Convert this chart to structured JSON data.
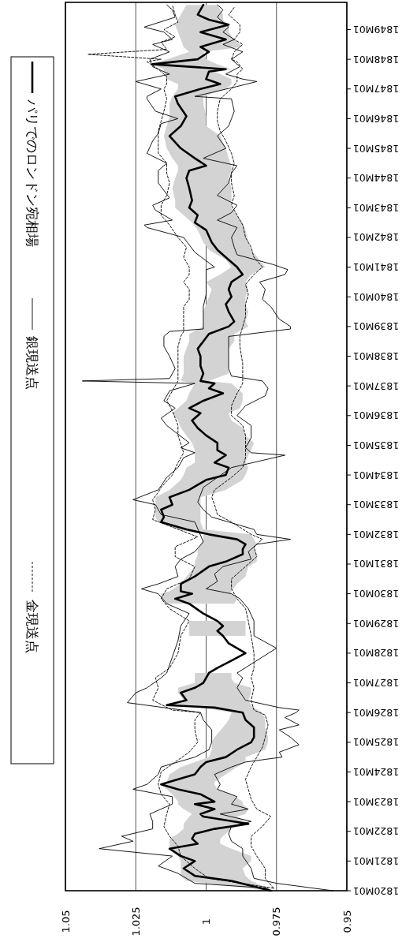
{
  "chart_data": {
    "type": "line",
    "orientation": "horizontal",
    "ylim": [
      "1820-01",
      "1849-12"
    ],
    "yticks": [
      {
        "value": "1820-01",
        "label": "1820M01"
      },
      {
        "value": "1821-01",
        "label": "1821M01"
      },
      {
        "value": "1822-01",
        "label": "1822M01"
      },
      {
        "value": "1823-01",
        "label": "1823M01"
      },
      {
        "value": "1824-01",
        "label": "1824M01"
      },
      {
        "value": "1825-01",
        "label": "1825M01"
      },
      {
        "value": "1826-01",
        "label": "1826M01"
      },
      {
        "value": "1827-01",
        "label": "1827M01"
      },
      {
        "value": "1828-01",
        "label": "1828M01"
      },
      {
        "value": "1829-01",
        "label": "1829M01"
      },
      {
        "value": "1830-01",
        "label": "1830M01"
      },
      {
        "value": "1831-01",
        "label": "1831M01"
      },
      {
        "value": "1832-01",
        "label": "1832M01"
      },
      {
        "value": "1833-01",
        "label": "1833M01"
      },
      {
        "value": "1834-01",
        "label": "1834M01"
      },
      {
        "value": "1835-01",
        "label": "1835M01"
      },
      {
        "value": "1836-01",
        "label": "1836M01"
      },
      {
        "value": "1837-01",
        "label": "1837M01"
      },
      {
        "value": "1838-01",
        "label": "1838M01"
      },
      {
        "value": "1839-01",
        "label": "1839M01"
      },
      {
        "value": "1840-01",
        "label": "1840M01"
      },
      {
        "value": "1841-01",
        "label": "1841M01"
      },
      {
        "value": "1842-01",
        "label": "1842M01"
      },
      {
        "value": "1843-01",
        "label": "1843M01"
      },
      {
        "value": "1844-01",
        "label": "1844M01"
      },
      {
        "value": "1845-01",
        "label": "1845M01"
      },
      {
        "value": "1846-01",
        "label": "1846M01"
      },
      {
        "value": "1847-01",
        "label": "1847M01"
      },
      {
        "value": "1848-01",
        "label": "1848M01"
      },
      {
        "value": "1849-01",
        "label": "1849M01"
      }
    ],
    "xlim": [
      1.05,
      0.95
    ],
    "xticks": [
      1.05,
      1.025,
      1,
      0.975,
      0.95
    ],
    "grid": "x",
    "legend": "left",
    "series": [
      {
        "name": "パリでのロンドン宛相場",
        "color": "#000000",
        "line_style": "solid",
        "x": [
          "1820-01",
          "1820-05",
          "1820-07",
          "1820-10",
          "1821-01",
          "1821-03",
          "1821-06",
          "1821-08",
          "1821-10",
          "1821-12",
          "1822-02",
          "1822-04",
          "1822-07",
          "1822-08",
          "1822-10",
          "1822-12",
          "1823-01",
          "1823-04",
          "1823-06",
          "1823-08",
          "1823-09",
          "1823-12",
          "1824-03",
          "1824-05",
          "1824-07",
          "1824-10",
          "1825-01",
          "1825-03",
          "1825-07",
          "1825-10",
          "1826-01",
          "1826-03",
          "1826-04",
          "1826-06",
          "1826-09",
          "1826-11",
          "1827-01",
          "1827-03",
          "1827-05",
          "1827-07",
          "1827-10",
          "1828-01",
          "1828-03",
          "1828-05",
          "1828-08",
          "1828-10",
          "1828-12",
          "1829-02",
          "1829-05",
          "1829-09",
          "1829-11",
          "1830-01",
          "1830-02",
          "1830-05",
          "1830-08",
          "1830-12",
          "1831-02",
          "1831-05",
          "1831-07",
          "1831-09",
          "1831-11",
          "1832-01",
          "1832-03",
          "1832-06",
          "1832-08",
          "1832-11",
          "1833-01",
          "1833-04",
          "1833-07",
          "1833-11",
          "1834-01",
          "1834-04",
          "1834-06",
          "1834-09",
          "1834-11",
          "1835-02",
          "1835-05",
          "1835-08",
          "1835-11",
          "1836-02",
          "1836-04",
          "1836-07",
          "1836-10",
          "1836-12",
          "1837-02",
          "1837-03",
          "1837-06",
          "1837-09",
          "1838-01",
          "1838-04",
          "1838-07",
          "1838-10",
          "1839-01",
          "1839-03",
          "1839-07",
          "1839-10",
          "1840-01",
          "1840-04",
          "1840-07",
          "1840-10",
          "1841-01",
          "1841-04",
          "1841-08",
          "1841-11",
          "1842-04",
          "1842-07",
          "1842-10",
          "1843-01",
          "1843-04",
          "1843-09",
          "1844-01",
          "1844-04",
          "1844-06",
          "1844-09",
          "1845-01",
          "1845-06",
          "1845-10",
          "1846-02",
          "1846-07",
          "1846-10",
          "1847-01",
          "1847-03",
          "1847-05",
          "1847-08",
          "1847-09",
          "1847-11",
          "1848-01",
          "1848-04",
          "1848-06",
          "1848-09",
          "1848-12",
          "1849-03",
          "1849-05",
          "1849-07",
          "1849-11"
        ],
        "values": [
          0.977,
          0.991,
          1.004,
          1.008,
          1.004,
          1.009,
          1.013,
          1.003,
          1.005,
          1.004,
          0.997,
          0.985,
          1.001,
          1.002,
          0.997,
          1.004,
          0.997,
          1.002,
          1.01,
          1.016,
          1.013,
          1.004,
          1.002,
          1.0,
          0.993,
          0.989,
          0.984,
          0.983,
          0.983,
          0.986,
          0.987,
          0.997,
          1.014,
          1.007,
          1.009,
          1.004,
          1.001,
          1.0,
          0.999,
          0.996,
          0.991,
          0.986,
          0.989,
          0.992,
          0.994,
          0.996,
          0.994,
          0.996,
          1.001,
          1.006,
          1.011,
          1.005,
          1.009,
          1.009,
          1.004,
          0.999,
          0.993,
          0.987,
          0.987,
          0.986,
          0.989,
          0.999,
          1.007,
          1.016,
          1.015,
          1.016,
          1.012,
          1.013,
          1.006,
          1.0,
          0.993,
          0.992,
          0.997,
          0.993,
          0.996,
          0.996,
          1.0,
          1.003,
          1.005,
          1.002,
          1.006,
          1.001,
          0.994,
          0.999,
          0.997,
          1.002,
          1.001,
          1.002,
          1.002,
          1.003,
          1.001,
          0.999,
          0.992,
          0.99,
          0.992,
          0.993,
          0.991,
          0.992,
          0.991,
          0.987,
          0.989,
          0.992,
          0.996,
          0.998,
          1.0,
          1.004,
          1.003,
          1.006,
          1.005,
          1.006,
          1.007,
          1.006,
          1.0,
          1.004,
          1.009,
          1.013,
          1.009,
          1.007,
          1.01,
          1.011,
          1.002,
          0.995,
          1.0,
          0.999,
          0.993,
          1.019,
          1.003,
          0.999,
          1.002,
          0.993,
          1.002,
          0.992,
          0.999,
          1.003,
          1.001
        ],
        "upper": [
          0.978,
          1.007,
          1.009,
          1.009,
          1.009,
          1.01,
          1.013,
          1.013,
          1.013,
          1.01,
          1.008,
          1.008,
          1.006,
          1.005,
          1.008,
          1.01,
          1.01,
          1.012,
          1.014,
          1.016,
          1.014,
          1.013,
          1.009,
          1.004,
          0.999,
          0.998,
          0.998,
          0.997,
          0.994,
          0.992,
          0.991,
          1.001,
          1.014,
          1.008,
          1.01,
          1.01,
          1.004,
          1.004,
          1.004,
          null,
          null,
          null,
          null,
          null,
          1.006,
          1.006,
          1.006,
          1.006,
          null,
          1.014,
          1.016,
          1.016,
          1.013,
          1.009,
          1.007,
          1.004,
          1.004,
          1.003,
          1.003,
          1.002,
          1.001,
          1.001,
          1.01,
          1.017,
          1.018,
          1.018,
          1.018,
          1.018,
          1.013,
          1.009,
          1.008,
          1.007,
          1.004,
          1.004,
          1.004,
          1.005,
          1.007,
          1.009,
          1.01,
          1.012,
          1.01,
          1.007,
          1.006,
          1.005,
          1.004,
          1.009,
          1.008,
          1.008,
          1.008,
          1.007,
          1.006,
          1.006,
          1.001,
          1.001,
          1.001,
          1.0,
          0.999,
          0.998,
          1.0,
          0.995,
          0.991,
          0.993,
          0.999,
          1.001,
          1.003,
          1.005,
          1.008,
          1.011,
          1.011,
          1.012,
          1.011,
          1.01,
          1.01,
          1.012,
          1.014,
          1.015,
          1.014,
          1.013,
          1.013,
          1.012,
          1.01,
          1.01,
          1.014,
          1.015,
          1.015,
          1.019,
          1.014,
          1.006,
          1.008,
          1.009,
          1.01,
          1.011,
          1.01,
          1.009,
          1.007
        ],
        "lower": [
          0.976,
          0.984,
          0.986,
          0.987,
          0.984,
          0.984,
          0.991,
          0.995,
          0.995,
          0.993,
          0.991,
          0.985,
          0.989,
          0.986,
          0.985,
          0.987,
          0.987,
          0.991,
          0.996,
          0.997,
          0.997,
          0.993,
          0.989,
          0.986,
          0.986,
          0.979,
          0.978,
          0.978,
          0.979,
          0.979,
          0.98,
          0.983,
          0.984,
          0.985,
          0.984,
          0.984,
          0.99,
          0.991,
          0.991,
          null,
          null,
          null,
          null,
          null,
          0.986,
          0.986,
          0.986,
          0.986,
          null,
          0.99,
          0.989,
          0.991,
          0.991,
          0.989,
          0.986,
          0.985,
          0.982,
          0.982,
          0.983,
          0.982,
          0.983,
          0.984,
          1.001,
          1.002,
          1.002,
          1.002,
          1.002,
          1.002,
          0.993,
          0.987,
          0.986,
          0.985,
          0.986,
          0.985,
          0.984,
          0.983,
          0.986,
          0.987,
          0.991,
          0.992,
          0.988,
          0.987,
          0.987,
          0.989,
          0.991,
          0.999,
          0.992,
          0.992,
          0.992,
          0.992,
          0.99,
          0.99,
          0.985,
          0.986,
          0.985,
          0.986,
          0.986,
          0.985,
          0.986,
          0.984,
          0.979,
          0.981,
          0.984,
          0.985,
          0.986,
          0.987,
          0.989,
          0.991,
          0.991,
          0.991,
          0.992,
          0.991,
          0.991,
          0.992,
          0.993,
          0.995,
          1.0,
          1.0,
          1.001,
          1.001,
          0.993,
          0.991,
          0.991,
          0.997,
          0.991,
          0.996,
          1.0,
          1.001,
          0.987,
          0.99,
          0.992,
          0.992,
          0.994,
          0.994,
          0.996
        ]
      },
      {
        "name": "銀現送点",
        "color": "#000000",
        "line_style": "solid",
        "x": [
          "1820-02",
          "1820-04",
          "1820-08",
          "1820-11",
          "1821-03",
          "1821-06",
          "1821-09",
          "1821-11",
          "1822-02",
          "1822-05",
          "1822-08",
          "1822-12",
          "1823-03",
          "1823-06",
          "1823-08",
          "1823-12",
          "1824-03",
          "1824-05",
          "1824-07",
          "1824-10",
          "1825-01",
          "1825-06",
          "1825-10",
          "1826-01",
          "1826-05",
          "1826-09",
          "1826-11",
          "1827-03",
          "1827-05",
          "1828-06",
          "1828-12",
          "1829-05",
          "1829-09",
          "1830-01",
          "1830-03",
          "1830-05",
          "1830-08",
          "1830-12",
          "1831-03",
          "1831-06",
          "1831-10",
          "1832-06",
          "1832-09",
          "1833-01",
          "1833-03",
          "1833-07",
          "1833-12",
          "1834-04",
          "1834-08",
          "1834-10",
          "1834-12",
          "1835-02",
          "1835-09",
          "1835-12",
          "1836-04",
          "1836-07",
          "1836-11",
          "1837-02",
          "1837-03",
          "1837-04",
          "1837-08",
          "1838-01",
          "1838-05",
          "1838-09",
          "1838-11",
          "1838-12",
          "1839-03",
          "1839-09",
          "1840-02",
          "1840-06",
          "1840-12",
          "1841-01",
          "1841-07",
          "1842-01",
          "1842-05",
          "1842-06",
          "1842-08",
          "1842-12",
          "1843-02",
          "1843-05",
          "1843-11",
          "1844-04",
          "1844-07",
          "1844-11",
          "1845-04",
          "1845-07",
          "1845-11",
          "1846-01",
          "1846-04",
          "1846-09",
          "1846-10",
          "1847-01",
          "1847-04",
          "1847-07",
          "1847-10",
          "1848-01",
          "1848-04",
          "1848-07",
          "1848-09",
          "1848-12",
          "1849-02",
          "1849-06",
          "1849-09",
          "1849-11"
        ],
        "values": [
          0.978,
          1.004,
          1.01,
          1.017,
          1.012,
          1.038,
          1.026,
          1.03,
          1.019,
          1.019,
          1.02,
          1.012,
          1.012,
          1.026,
          1.021,
          1.017,
          1.016,
          1.01,
          1.004,
          0.999,
          0.998,
          0.998,
          1.001,
          1.002,
          1.028,
          1.025,
          1.021,
          1.016,
          1.014,
          1.01,
          1.009,
          1.006,
          1.014,
          1.017,
          1.023,
          1.017,
          1.01,
          1.011,
          1.009,
          1.004,
          1.001,
          1.004,
          1.016,
          1.018,
          1.026,
          1.017,
          1.014,
          1.01,
          1.008,
          1.004,
          1.009,
          1.006,
          1.014,
          1.016,
          1.011,
          1.015,
          1.013,
          1.004,
          1.044,
          1.013,
          1.011,
          1.013,
          1.015,
          1.015,
          1.013,
          1.001,
          1.001,
          1.001,
          1.0,
          1.0,
          1.0,
          0.997,
          1.004,
          1.008,
          1.021,
          1.022,
          1.012,
          1.018,
          1.019,
          1.013,
          1.017,
          1.017,
          1.014,
          1.021,
          1.019,
          1.017,
          1.016,
          1.01,
          1.018,
          1.021,
          1.021,
          1.016,
          1.025,
          1.013,
          1.019,
          1.02,
          1.013,
          1.019,
          1.012,
          1.015,
          1.022,
          1.011,
          1.012,
          1.014
        ]
      },
      {
        "color": "#000000",
        "line_style": "solid",
        "x": [
          "1820-01",
          "1820-04",
          "1820-06",
          "1820-10",
          "1821-03",
          "1821-06",
          "1821-09",
          "1821-12",
          "1822-03",
          "1822-05",
          "1822-08",
          "1822-10",
          "1822-12",
          "1823-03",
          "1823-06",
          "1823-08",
          "1823-12",
          "1824-03",
          "1824-05",
          "1824-07",
          "1824-09",
          "1824-12",
          "1825-03",
          "1825-06",
          "1825-08",
          "1825-11",
          "1826-01",
          "1826-02",
          "1826-03",
          "1826-06",
          "1826-11",
          "1827-03",
          "1827-05",
          "1828-03",
          "1828-08",
          "1829-02",
          "1829-07",
          "1829-11",
          "1830-01",
          "1830-03",
          "1830-06",
          "1830-09",
          "1830-12",
          "1831-03",
          "1831-06",
          "1831-09",
          "1831-11",
          "1832-01",
          "1832-03",
          "1832-08",
          "1832-11",
          "1833-02",
          "1833-05",
          "1833-08",
          "1833-12",
          "1834-04",
          "1834-09",
          "1834-10",
          "1834-12",
          "1835-04",
          "1835-09",
          "1836-01",
          "1836-05",
          "1836-09",
          "1836-12",
          "1837-03",
          "1837-05",
          "1837-08",
          "1838-01",
          "1838-05",
          "1838-09",
          "1838-12",
          "1839-01",
          "1839-04",
          "1839-09",
          "1839-12",
          "1840-04",
          "1840-07",
          "1840-10",
          "1840-12",
          "1841-02",
          "1841-06",
          "1841-09",
          "1842-01",
          "1842-05",
          "1842-08",
          "1842-11",
          "1843-02",
          "1843-06",
          "1843-11",
          "1844-03",
          "1844-06",
          "1844-09",
          "1845-01",
          "1845-06",
          "1845-10",
          "1846-01",
          "1846-04",
          "1846-09",
          "1846-10",
          "1847-02",
          "1847-04",
          "1847-05",
          "1847-07",
          "1847-10",
          "1848-01",
          "1848-04",
          "1848-07",
          "1848-09",
          "1848-12",
          "1849-02",
          "1849-06",
          "1849-09",
          "1849-11"
        ],
        "values": [
          0.955,
          0.975,
          0.983,
          0.984,
          0.987,
          0.987,
          0.991,
          0.992,
          0.991,
          0.984,
          0.995,
          0.985,
          0.991,
          0.989,
          0.996,
          0.995,
          0.997,
          0.991,
          0.986,
          0.973,
          0.974,
          0.967,
          0.97,
          0.974,
          0.967,
          0.972,
          0.968,
          0.967,
          0.974,
          0.986,
          0.989,
          0.987,
          0.989,
          0.975,
          0.983,
          0.983,
          0.985,
          0.988,
          0.991,
          1.0,
          0.996,
          0.997,
          0.994,
          0.984,
          0.985,
          0.982,
          0.97,
          0.982,
          0.983,
          0.998,
          1.001,
          1.003,
          1.002,
          1.001,
          0.996,
          0.991,
          0.972,
          0.984,
          0.986,
          0.984,
          0.984,
          0.989,
          0.986,
          0.979,
          0.978,
          0.98,
          0.991,
          0.992,
          0.992,
          0.992,
          0.992,
          0.97,
          0.97,
          0.974,
          0.977,
          0.98,
          0.979,
          0.981,
          0.972,
          0.971,
          0.976,
          0.989,
          0.99,
          0.991,
          0.989,
          0.996,
          0.991,
          0.989,
          0.996,
          0.992,
          0.991,
          0.989,
          1.001,
          0.993,
          0.996,
          0.992,
          0.991,
          0.99,
          0.991,
          1.004,
          0.989,
          0.982,
          0.987,
          0.993,
          0.988,
          0.991,
          0.987,
          0.994,
          0.99,
          0.994,
          0.992,
          0.996,
          0.994,
          0.996
        ]
      },
      {
        "name": "金現送点",
        "color": "#000000",
        "line_style": "dashed",
        "x": [
          "1820-02",
          "1820-06",
          "1820-10",
          "1821-03",
          "1821-07",
          "1821-11",
          "1822-03",
          "1822-08",
          "1822-12",
          "1823-04",
          "1823-08",
          "1824-01",
          "1824-05",
          "1824-09",
          "1825-01",
          "1825-06",
          "1825-10",
          "1826-01",
          "1826-02",
          "1826-06",
          "1826-11",
          "1827-03",
          "1827-07",
          "1828-01",
          "1828-08",
          "1829-02",
          "1829-07",
          "1829-11",
          "1830-03",
          "1830-07",
          "1830-12",
          "1831-04",
          "1831-08",
          "1831-12",
          "1832-07",
          "1832-11",
          "1833-03",
          "1833-06",
          "1833-08",
          "1834-01",
          "1834-06",
          "1834-10",
          "1835-05",
          "1835-09",
          "1836-03",
          "1836-07",
          "1836-11",
          "1837-03",
          "1837-06",
          "1837-10",
          "1838-05",
          "1838-09",
          "1838-11",
          "1839-03",
          "1839-09",
          "1839-12",
          "1840-04",
          "1840-07",
          "1840-10",
          "1841-01",
          "1841-05",
          "1841-09",
          "1842-01",
          "1842-06",
          "1842-10",
          "1843-02",
          "1843-06",
          "1843-11",
          "1844-03",
          "1844-07",
          "1844-11",
          "1845-04",
          "1845-08",
          "1845-12",
          "1846-04",
          "1846-09",
          "1847-01",
          "1847-03",
          "1847-06",
          "1847-09",
          "1847-12",
          "1848-01",
          "1848-03",
          "1848-05",
          "1848-08",
          "1848-10",
          "1849-01",
          "1849-04",
          "1849-07",
          "1849-11"
        ],
        "values": [
          0.976,
          0.999,
          1.004,
          1.009,
          1.01,
          1.013,
          1.015,
          1.014,
          1.013,
          1.016,
          1.017,
          1.016,
          1.011,
          1.006,
          1.003,
          1.004,
          1.004,
          1.002,
          1.012,
          1.019,
          1.017,
          1.018,
          1.013,
          1.01,
          1.009,
          1.006,
          1.013,
          1.016,
          1.014,
          1.006,
          1.004,
          1.011,
          1.011,
          1.003,
          1.019,
          1.018,
          1.019,
          1.017,
          1.016,
          1.012,
          1.01,
          1.008,
          1.01,
          1.01,
          1.012,
          1.014,
          1.012,
          1.01,
          1.01,
          1.01,
          1.01,
          1.009,
          1.008,
          1.008,
          1.008,
          1.006,
          1.006,
          1.008,
          1.006,
          1.006,
          1.008,
          1.007,
          1.01,
          1.013,
          1.016,
          1.016,
          1.014,
          1.013,
          1.014,
          1.014,
          1.017,
          1.017,
          1.017,
          1.016,
          1.015,
          1.014,
          1.015,
          1.014,
          1.014,
          1.017,
          1.021,
          1.016,
          1.042,
          1.014,
          1.016,
          1.011,
          1.015,
          1.01,
          1.011,
          1.012
        ]
      },
      {
        "color": "#000000",
        "line_style": "dashed",
        "x": [
          "1820-02",
          "1820-06",
          "1820-10",
          "1821-03",
          "1821-07",
          "1821-11",
          "1822-03",
          "1822-07",
          "1822-10",
          "1823-02",
          "1823-06",
          "1823-10",
          "1824-03",
          "1824-07",
          "1824-11",
          "1825-03",
          "1825-08",
          "1825-12",
          "1826-02",
          "1826-06",
          "1826-11",
          "1827-03",
          "1827-07",
          "1828-01",
          "1828-08",
          "1829-02",
          "1829-07",
          "1829-11",
          "1830-03",
          "1830-07",
          "1830-12",
          "1831-04",
          "1831-08",
          "1831-11",
          "1832-01",
          "1832-06",
          "1832-09",
          "1833-01",
          "1833-04",
          "1833-07",
          "1833-12",
          "1834-04",
          "1834-08",
          "1834-12",
          "1835-05",
          "1835-09",
          "1836-01",
          "1836-05",
          "1836-10",
          "1837-02",
          "1837-06",
          "1837-10",
          "1838-05",
          "1838-09",
          "1839-01",
          "1839-05",
          "1839-10",
          "1840-02",
          "1840-06",
          "1840-10",
          "1841-01",
          "1841-05",
          "1841-09",
          "1842-01",
          "1842-06",
          "1842-10",
          "1843-02",
          "1843-06",
          "1843-11",
          "1844-03",
          "1844-07",
          "1844-11",
          "1845-04",
          "1845-08",
          "1845-12",
          "1846-04",
          "1846-09",
          "1847-01",
          "1847-04",
          "1847-07",
          "1847-09",
          "1847-12",
          "1848-01",
          "1848-04",
          "1848-07",
          "1848-09",
          "1848-12",
          "1849-03",
          "1849-07",
          "1849-10"
        ],
        "values": [
          0.976,
          0.979,
          0.979,
          0.982,
          0.984,
          0.984,
          0.98,
          0.977,
          0.982,
          0.984,
          0.985,
          0.986,
          0.984,
          0.982,
          0.98,
          0.979,
          0.978,
          0.979,
          0.983,
          0.984,
          0.983,
          0.984,
          0.983,
          0.983,
          0.984,
          0.985,
          0.986,
          0.989,
          0.991,
          0.991,
          0.986,
          0.982,
          0.983,
          0.98,
          0.984,
          0.991,
          0.996,
          0.997,
          0.998,
          0.997,
          0.991,
          0.987,
          0.986,
          0.986,
          0.986,
          0.987,
          0.991,
          0.991,
          0.989,
          0.987,
          0.987,
          0.987,
          0.988,
          0.988,
          0.987,
          0.986,
          0.986,
          0.985,
          0.986,
          0.983,
          0.98,
          0.983,
          0.984,
          0.986,
          0.987,
          0.989,
          0.991,
          0.99,
          0.991,
          0.991,
          0.99,
          0.991,
          0.993,
          0.995,
          0.996,
          0.996,
          0.995,
          0.991,
          0.989,
          0.989,
          0.987,
          0.989,
          0.991,
          0.99,
          0.987,
          0.99,
          0.988,
          0.988,
          0.992,
          0.99
        ]
      }
    ]
  }
}
